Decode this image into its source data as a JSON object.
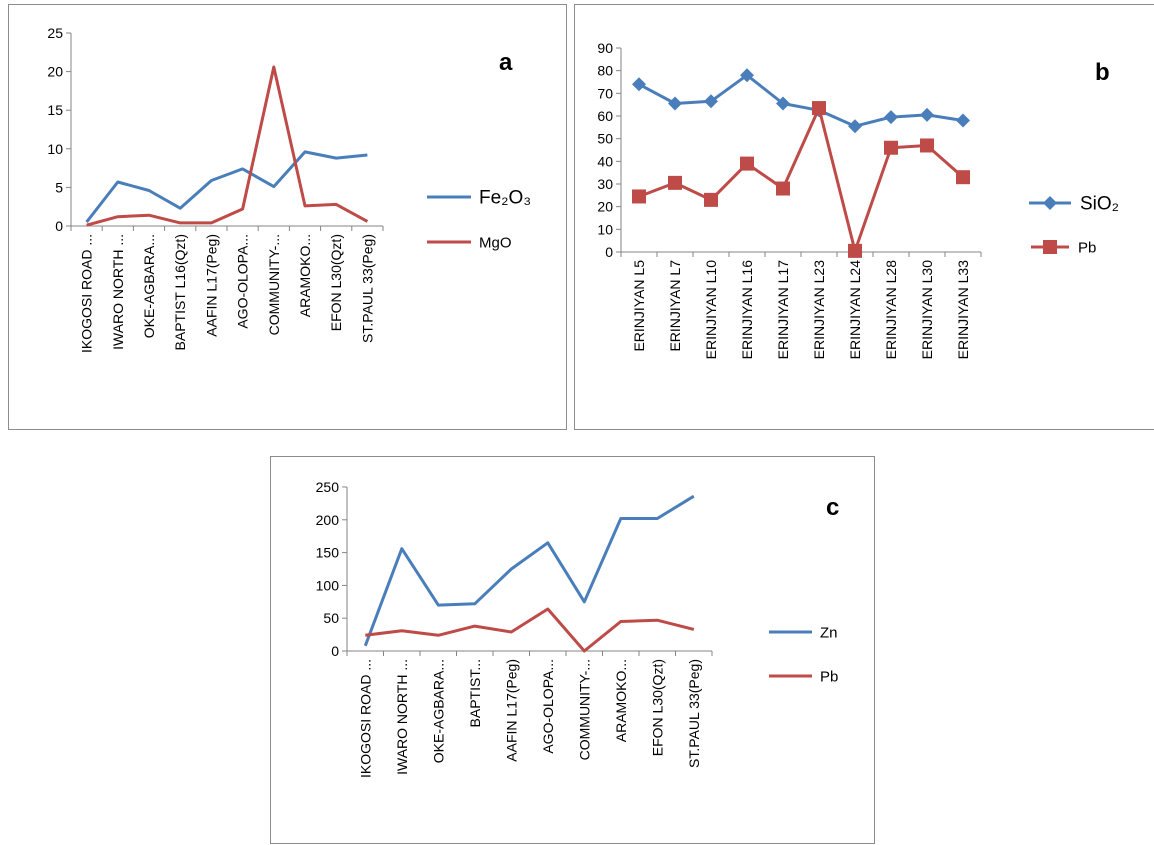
{
  "chart_data": [
    {
      "id": "a",
      "panel_label": "a",
      "type": "line",
      "categories": [
        "IKOGOSI ROAD ...",
        "IWARO NORTH ...",
        "OKE-AGBARA...",
        "BAPTIST L16(Qzt)",
        "AAFIN L17(Peg)",
        "AGO-OLOPA...",
        "COMMUNITY-...",
        "ARAMOKO...",
        "EFON L30(Qzt)",
        "ST.PAUL 33(Peg)"
      ],
      "ylim": [
        0,
        25
      ],
      "yticks": [
        0,
        5,
        10,
        15,
        20,
        25
      ],
      "grid": false,
      "legend_position": "right",
      "series": [
        {
          "name": "Fe₂O₃",
          "color": "#4a7ebb",
          "marker": "none",
          "values": [
            0.5,
            5.7,
            4.6,
            2.3,
            5.9,
            7.4,
            5.1,
            9.6,
            8.8,
            9.2
          ]
        },
        {
          "name": "MgO",
          "color": "#be4b48",
          "marker": "none",
          "values": [
            0.1,
            1.2,
            1.4,
            0.4,
            0.4,
            2.2,
            20.6,
            2.6,
            2.8,
            0.6
          ]
        }
      ]
    },
    {
      "id": "b",
      "panel_label": "b",
      "type": "line",
      "categories": [
        "ERINJIYAN L5",
        "ERINJIYAN L7",
        "ERINJIYAN L10",
        "ERINJIYAN L16",
        "ERINJIYAN L17",
        "ERINJIYAN L23",
        "ERINJIYAN L24",
        "ERINJIYAN L28",
        "ERINJIYAN L30",
        "ERINJIYAN L33"
      ],
      "ylim": [
        0,
        90
      ],
      "yticks": [
        0,
        10,
        20,
        30,
        40,
        50,
        60,
        70,
        80,
        90
      ],
      "grid": false,
      "legend_position": "right",
      "series": [
        {
          "name": "SiO₂",
          "color": "#4a7ebb",
          "marker": "diamond",
          "values": [
            74,
            65.5,
            66.5,
            78,
            65.5,
            62.5,
            55.5,
            59.5,
            60.5,
            58
          ]
        },
        {
          "name": "Pb",
          "color": "#be4b48",
          "marker": "square",
          "values": [
            24.5,
            30.5,
            23,
            39,
            28,
            63.5,
            0.5,
            46,
            47,
            33
          ]
        }
      ]
    },
    {
      "id": "c",
      "panel_label": "c",
      "type": "line",
      "categories": [
        "IKOGOSI ROAD ...",
        "IWARO NORTH ...",
        "OKE-AGBARA...",
        "BAPTIST...",
        "AAFIN L17(Peg)",
        "AGO-OLOPA...",
        "COMMUNITY-...",
        "ARAMOKO...",
        "EFON L30(Qzt)",
        "ST.PAUL 33(Peg)"
      ],
      "ylim": [
        0,
        250
      ],
      "yticks": [
        0,
        50,
        100,
        150,
        200,
        250
      ],
      "grid": false,
      "legend_position": "right",
      "series": [
        {
          "name": "Zn",
          "color": "#4a7ebb",
          "marker": "none",
          "values": [
            8,
            156,
            70,
            72,
            125,
            165,
            75,
            202,
            202,
            236
          ]
        },
        {
          "name": "Pb",
          "color": "#be4b48",
          "marker": "none",
          "values": [
            24,
            31,
            24,
            38,
            29,
            64,
            0,
            45,
            47,
            33
          ]
        }
      ]
    }
  ]
}
